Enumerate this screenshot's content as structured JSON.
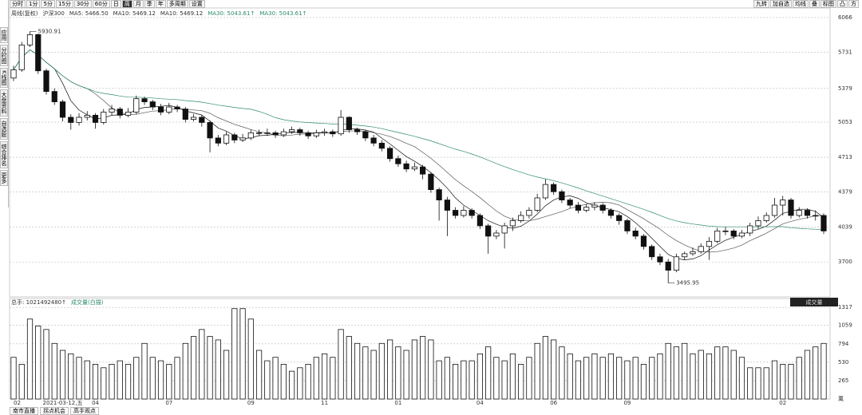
{
  "toolbar": {
    "periods": [
      "分时",
      "1分",
      "5分",
      "15分",
      "30分",
      "60分",
      "日",
      "周",
      "月",
      "季",
      "年",
      "多周期",
      "设置"
    ],
    "active": 7,
    "tools": [
      "九转",
      "加自选",
      "均线",
      "叠",
      "标图",
      "凸",
      "方"
    ]
  },
  "sidebar": [
    "应用",
    "分时图",
    "K线图",
    "大盘资料",
    "自选股",
    "综合排名",
    "更多"
  ],
  "bottom_tabs": [
    "南市直播",
    "拐点机会",
    "高手观点"
  ],
  "chart_data": {
    "type": "candlestick",
    "legend": [
      "周线(复权)",
      "沪深300",
      "MA5: 5466.50",
      "MA10: 5469.12",
      "MA10: 5469.12",
      "MA30: 5043.61↑",
      "MA30: 5043.61↑"
    ],
    "annotations": [
      {
        "text": "5930.91",
        "index": 2,
        "value": 5930.91
      },
      {
        "text": "3495.95",
        "index": 80,
        "value": 3495.95
      }
    ],
    "categories": [
      "02",
      null,
      null,
      null,
      null,
      null,
      "2021-03-12,五",
      null,
      null,
      null,
      "04",
      null,
      null,
      null,
      null,
      null,
      null,
      null,
      null,
      "07",
      null,
      null,
      null,
      null,
      null,
      null,
      null,
      null,
      null,
      "09",
      null,
      null,
      null,
      null,
      null,
      null,
      null,
      null,
      "11",
      null,
      null,
      null,
      null,
      null,
      null,
      null,
      null,
      "01",
      null,
      null,
      null,
      null,
      null,
      null,
      null,
      null,
      null,
      "04",
      null,
      null,
      null,
      null,
      null,
      null,
      null,
      null,
      "06",
      null,
      null,
      null,
      null,
      null,
      null,
      null,
      null,
      "09",
      null,
      null,
      null,
      null,
      null,
      null,
      null,
      null,
      null,
      null,
      null,
      null,
      null,
      null,
      null,
      null,
      null,
      null,
      "02",
      null,
      null,
      null,
      null,
      null
    ],
    "open": [
      5480,
      5560,
      5800,
      5900,
      5550,
      5350,
      5250,
      5100,
      5050,
      5100,
      5120,
      5050,
      5150,
      5180,
      5120,
      5150,
      5280,
      5250,
      5200,
      5150,
      5200,
      5180,
      5080,
      5100,
      5050,
      4900,
      4850,
      4930,
      4880,
      4900,
      4950,
      4950,
      4950,
      4930,
      4960,
      4980,
      4950,
      4920,
      4950,
      4960,
      4940,
      5100,
      4980,
      4960,
      4900,
      4850,
      4800,
      4700,
      4650,
      4600,
      4620,
      4550,
      4400,
      4300,
      4200,
      4150,
      4200,
      4150,
      4050,
      3950,
      3980,
      4050,
      4100,
      4150,
      4200,
      4320,
      4450,
      4380,
      4300,
      4250,
      4200,
      4230,
      4250,
      4200,
      4150,
      4100,
      4000,
      3950,
      3850,
      3750,
      3700,
      3620,
      3750,
      3780,
      3800,
      3850,
      3900,
      4000,
      4000,
      3950,
      3980,
      4050,
      4100,
      4150,
      4250,
      4300,
      4150,
      4200,
      4150,
      4150
    ],
    "close": [
      5560,
      5800,
      5900,
      5550,
      5350,
      5250,
      5100,
      5050,
      5100,
      5120,
      5050,
      5150,
      5180,
      5120,
      5150,
      5280,
      5250,
      5200,
      5150,
      5200,
      5180,
      5080,
      5100,
      5050,
      4900,
      4850,
      4930,
      4880,
      4900,
      4950,
      4950,
      4950,
      4930,
      4960,
      4980,
      4950,
      4920,
      4950,
      4960,
      4940,
      5100,
      4980,
      4960,
      4900,
      4850,
      4800,
      4700,
      4650,
      4600,
      4620,
      4550,
      4400,
      4300,
      4200,
      4150,
      4200,
      4150,
      4050,
      3950,
      3980,
      4050,
      4100,
      4150,
      4200,
      4320,
      4450,
      4380,
      4300,
      4250,
      4200,
      4230,
      4250,
      4200,
      4150,
      4100,
      4000,
      3950,
      3850,
      3750,
      3700,
      3620,
      3750,
      3780,
      3800,
      3850,
      3900,
      4000,
      4000,
      3950,
      3980,
      4050,
      4100,
      4150,
      4250,
      4300,
      4150,
      4200,
      4150,
      4150,
      4000
    ],
    "high": [
      5600,
      5830,
      5930.91,
      5910,
      5570,
      5380,
      5270,
      5130,
      5140,
      5160,
      5140,
      5180,
      5220,
      5200,
      5190,
      5310,
      5300,
      5270,
      5230,
      5240,
      5220,
      5200,
      5130,
      5120,
      5070,
      4930,
      4960,
      4950,
      4940,
      4980,
      4980,
      4990,
      4970,
      4990,
      5010,
      5000,
      4970,
      4980,
      4990,
      4980,
      5170,
      5110,
      5000,
      4980,
      4930,
      4880,
      4820,
      4730,
      4680,
      4660,
      4640,
      4570,
      4420,
      4330,
      4230,
      4240,
      4220,
      4170,
      4070,
      4010,
      4080,
      4130,
      4190,
      4230,
      4360,
      4500,
      4470,
      4400,
      4320,
      4280,
      4260,
      4280,
      4270,
      4220,
      4170,
      4120,
      4030,
      3970,
      3870,
      3780,
      3730,
      3780,
      3800,
      3840,
      3880,
      3940,
      4030,
      4040,
      4020,
      4010,
      4080,
      4140,
      4180,
      4320,
      4340,
      4320,
      4230,
      4220,
      4200,
      4170
    ],
    "low": [
      5450,
      5540,
      5780,
      5520,
      5320,
      5220,
      5060,
      4980,
      5020,
      5070,
      4990,
      5030,
      5120,
      5090,
      5100,
      5130,
      5220,
      5170,
      5120,
      5130,
      5150,
      5050,
      5060,
      5010,
      4760,
      4820,
      4830,
      4850,
      4860,
      4880,
      4920,
      4920,
      4900,
      4910,
      4940,
      4920,
      4890,
      4900,
      4920,
      4910,
      4920,
      4950,
      4930,
      4870,
      4820,
      4770,
      4670,
      4620,
      4570,
      4580,
      4500,
      4370,
      4100,
      3950,
      4120,
      4130,
      4120,
      4020,
      3780,
      3920,
      3830,
      4000,
      4080,
      4120,
      4180,
      4300,
      4350,
      4270,
      4220,
      4170,
      4180,
      4200,
      4170,
      4120,
      4060,
      3970,
      3920,
      3820,
      3720,
      3670,
      3495.95,
      3600,
      3720,
      3760,
      3780,
      3720,
      3880,
      3960,
      3920,
      3930,
      3950,
      4020,
      4080,
      4130,
      4150,
      4120,
      4130,
      4120,
      4100,
      3970
    ],
    "ylim": [
      3362,
      6158
    ],
    "yticks": [
      3700,
      4039,
      4379,
      4713,
      5053,
      5379,
      5731,
      6066
    ],
    "moving_averages": [
      {
        "window": 5,
        "color": "#111111"
      },
      {
        "window": 10,
        "color": "#555555"
      },
      {
        "window": 30,
        "color": "#2e8b6f"
      }
    ],
    "volume": {
      "header": [
        "总手: 1021492480↑",
        "成交量(白描)"
      ],
      "selector": "成交量",
      "unit": "萬",
      "values": [
        600,
        500,
        1150,
        1050,
        1000,
        800,
        700,
        650,
        600,
        550,
        500,
        450,
        500,
        550,
        500,
        600,
        800,
        600,
        550,
        500,
        600,
        800,
        900,
        1000,
        900,
        850,
        700,
        1300,
        1300,
        1150,
        700,
        550,
        600,
        500,
        400,
        450,
        500,
        600,
        650,
        600,
        1000,
        900,
        800,
        750,
        700,
        800,
        850,
        750,
        700,
        850,
        900,
        850,
        550,
        600,
        500,
        550,
        550,
        650,
        750,
        600,
        550,
        650,
        500,
        600,
        800,
        900,
        850,
        750,
        650,
        550,
        600,
        650,
        600,
        650,
        600,
        550,
        600,
        500,
        600,
        650,
        800,
        750,
        800,
        650,
        700,
        650,
        750,
        750,
        700,
        600,
        450,
        450,
        450,
        550,
        500,
        500,
        600,
        700,
        750,
        800
      ],
      "ylim": [
        0,
        1400
      ],
      "yticks": [
        265,
        530,
        794,
        1059,
        1317
      ]
    }
  }
}
